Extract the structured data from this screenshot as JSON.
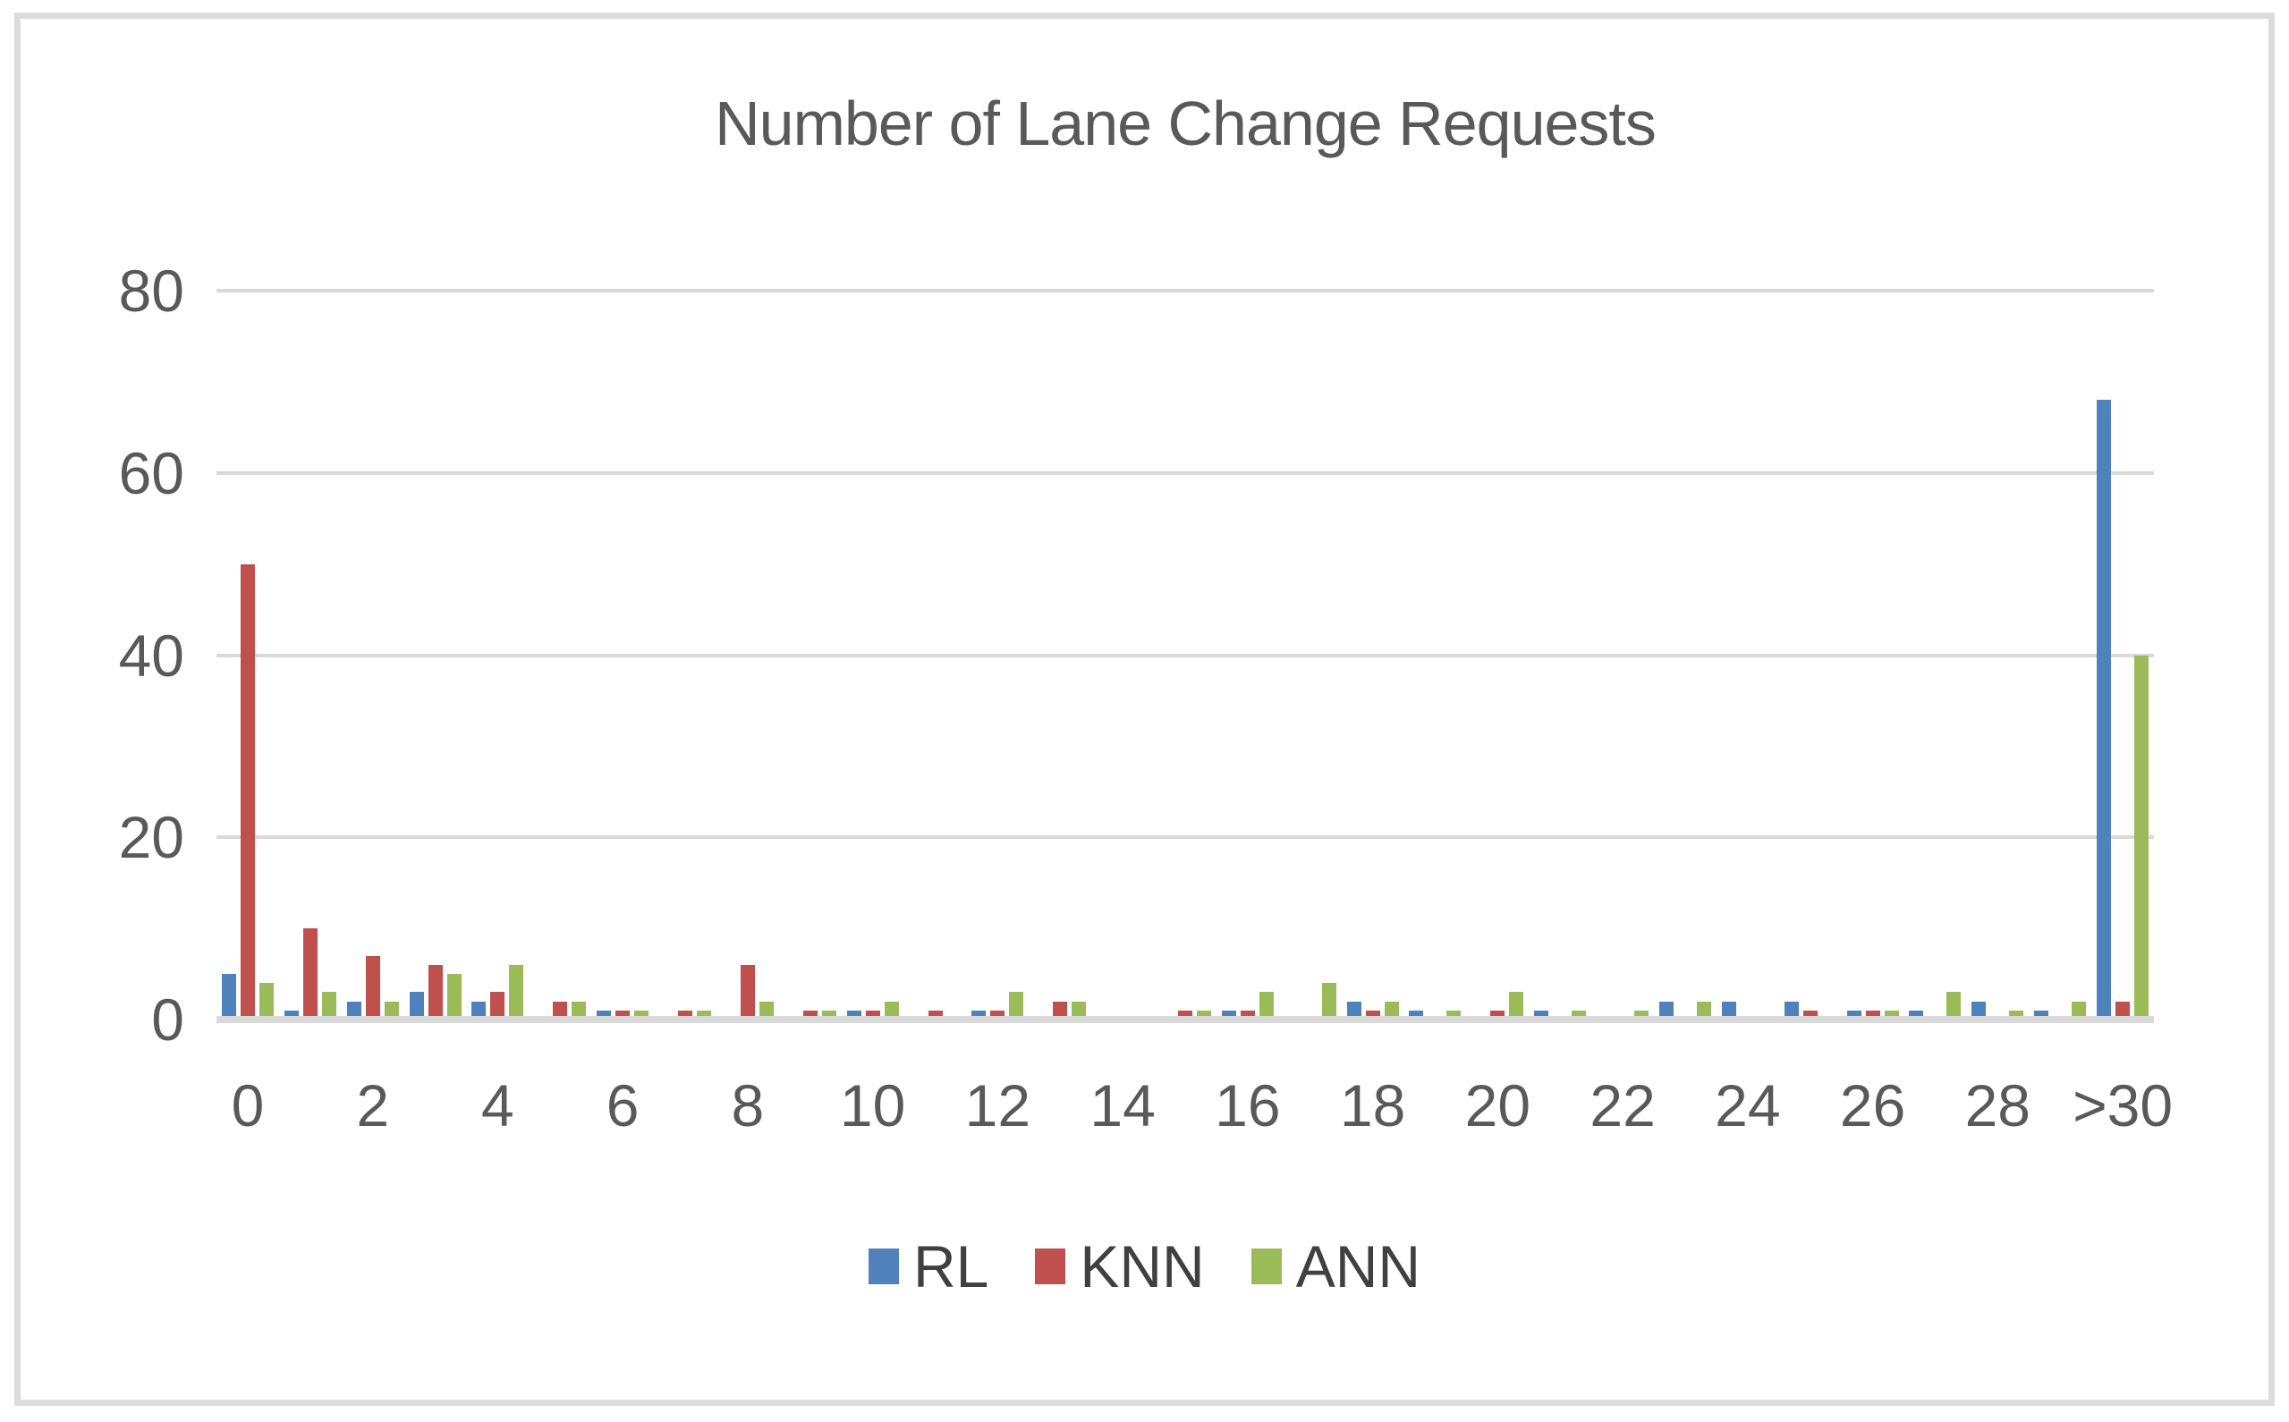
{
  "chart_data": {
    "type": "bar",
    "title": "Number of Lane Change Requests",
    "categories": [
      "0",
      "1",
      "2",
      "3",
      "4",
      "5",
      "6",
      "7",
      "8",
      "9",
      "10",
      "11",
      "12",
      "13",
      "14",
      "15",
      "16",
      "17",
      "18",
      "19",
      "20",
      "21",
      "22",
      "23",
      "24",
      "25",
      "26",
      "27",
      "28",
      "29",
      ">30"
    ],
    "series": [
      {
        "name": "RL",
        "color": "#4f81bd",
        "values": [
          5,
          1,
          2,
          3,
          2,
          0,
          1,
          0,
          0,
          0,
          1,
          0,
          1,
          0,
          0,
          0,
          1,
          0,
          2,
          1,
          0,
          1,
          0,
          2,
          2,
          2,
          1,
          1,
          2,
          1,
          68
        ]
      },
      {
        "name": "KNN",
        "color": "#c0504d",
        "values": [
          50,
          10,
          7,
          6,
          3,
          2,
          1,
          1,
          6,
          1,
          1,
          1,
          1,
          2,
          0,
          1,
          1,
          0,
          1,
          0,
          1,
          0,
          0,
          0,
          0,
          1,
          1,
          0,
          0,
          0,
          2
        ]
      },
      {
        "name": "ANN",
        "color": "#9bbb59",
        "values": [
          4,
          3,
          2,
          5,
          6,
          2,
          1,
          1,
          2,
          1,
          2,
          0,
          3,
          2,
          0,
          1,
          3,
          4,
          2,
          1,
          3,
          1,
          1,
          2,
          0,
          0,
          1,
          3,
          1,
          2,
          40
        ]
      }
    ],
    "ylim": [
      0,
      80
    ],
    "yticks": [
      0,
      20,
      40,
      60,
      80
    ],
    "x_tick_labels": [
      "0",
      "2",
      "4",
      "6",
      "8",
      "10",
      "12",
      "14",
      "16",
      "18",
      "20",
      "22",
      "24",
      "26",
      "28",
      ">30"
    ],
    "xlabel": "",
    "ylabel": "",
    "grid": true,
    "legend_position": "bottom"
  },
  "styles": {
    "grid_color": "#d9d9d9",
    "axis_color": "#d9d9d9",
    "tick_text_color": "#595959",
    "legend_text_color": "#404040",
    "frame_border_color": "#dcdcdc",
    "background": "#ffffff"
  }
}
